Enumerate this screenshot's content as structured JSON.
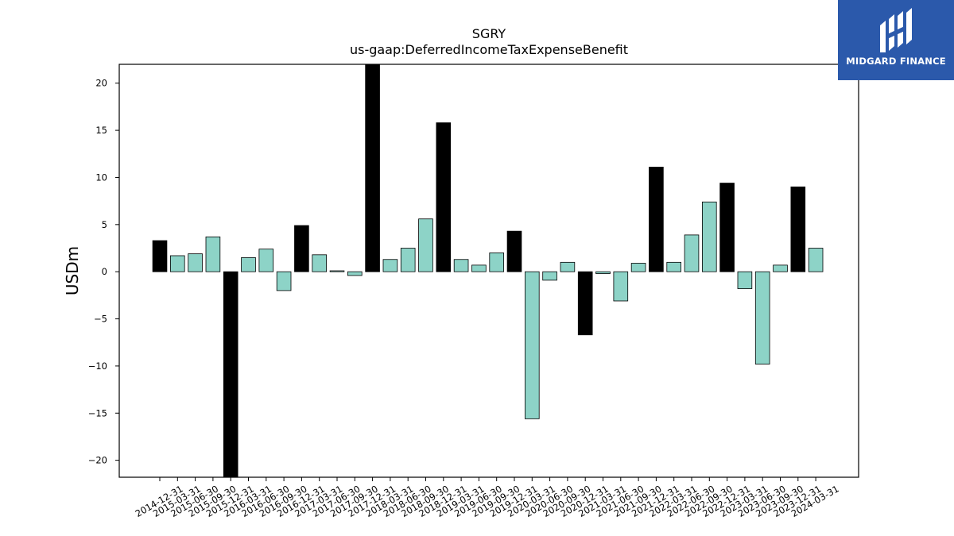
{
  "brand": {
    "name": "MIDGARD FINANCE",
    "logo_icon": "midgard-logo-icon",
    "color": "#2b59ab"
  },
  "chart_data": {
    "type": "bar",
    "title": "SGRY",
    "subtitle": "us-gaap:DeferredIncomeTaxExpenseBenefit",
    "xlabel": "",
    "ylabel": "USDm",
    "ylim": [
      -21.8,
      22
    ],
    "yticks": [
      -20,
      -15,
      -10,
      -5,
      0,
      5,
      10,
      15,
      20
    ],
    "grid": false,
    "colors": {
      "annual": "#000000",
      "quarterly": "#8dd3c7"
    },
    "categories": [
      "2014-12-31",
      "2015-03-31",
      "2015-06-30",
      "2015-09-30",
      "2015-12-31",
      "2016-03-31",
      "2016-06-30",
      "2016-09-30",
      "2016-12-31",
      "2017-03-31",
      "2017-06-30",
      "2017-09-30",
      "2017-12-31",
      "2018-03-31",
      "2018-06-30",
      "2018-09-30",
      "2018-12-31",
      "2019-03-31",
      "2019-06-30",
      "2019-09-30",
      "2019-12-31",
      "2020-03-31",
      "2020-06-30",
      "2020-09-30",
      "2020-12-31",
      "2021-03-31",
      "2021-06-30",
      "2021-09-30",
      "2021-12-31",
      "2022-03-31",
      "2022-06-30",
      "2022-09-30",
      "2022-12-31",
      "2023-03-31",
      "2023-06-30",
      "2023-09-30",
      "2023-12-31",
      "2024-03-31"
    ],
    "values": [
      3.3,
      1.7,
      1.9,
      3.7,
      -22.5,
      1.5,
      2.4,
      -2.0,
      4.9,
      1.8,
      0.1,
      -0.4,
      23.0,
      1.3,
      2.5,
      5.6,
      15.8,
      1.3,
      0.7,
      2.0,
      4.3,
      -15.6,
      -0.9,
      1.0,
      -6.7,
      -0.2,
      -3.1,
      0.9,
      11.1,
      1.0,
      3.9,
      7.4,
      9.4,
      -1.8,
      -9.8,
      0.7,
      9.0,
      2.5
    ],
    "period_type": [
      "annual",
      "quarterly",
      "quarterly",
      "quarterly",
      "annual",
      "quarterly",
      "quarterly",
      "quarterly",
      "annual",
      "quarterly",
      "quarterly",
      "quarterly",
      "annual",
      "quarterly",
      "quarterly",
      "quarterly",
      "annual",
      "quarterly",
      "quarterly",
      "quarterly",
      "annual",
      "quarterly",
      "quarterly",
      "quarterly",
      "annual",
      "quarterly",
      "quarterly",
      "quarterly",
      "annual",
      "quarterly",
      "quarterly",
      "quarterly",
      "annual",
      "quarterly",
      "quarterly",
      "quarterly",
      "annual",
      "quarterly"
    ]
  }
}
